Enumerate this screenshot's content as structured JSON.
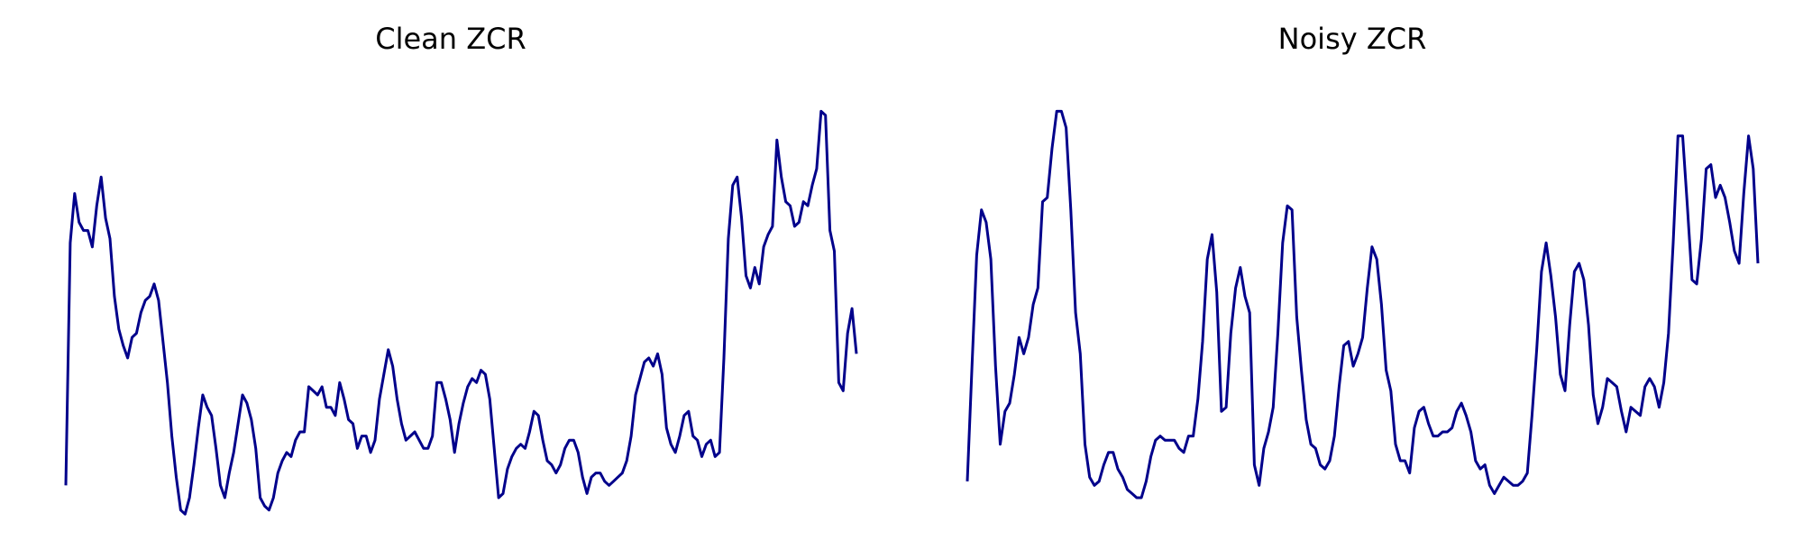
{
  "chart_data": [
    {
      "type": "line",
      "title": "Clean ZCR",
      "xlabel": "",
      "ylabel": "",
      "grid": false,
      "axes_visible": false,
      "color": "#00008b",
      "ylim": [
        0,
        1
      ],
      "series": [
        {
          "values": [
            0.03,
            0.62,
            0.74,
            0.67,
            0.65,
            0.65,
            0.61,
            0.71,
            0.78,
            0.68,
            0.63,
            0.49,
            0.41,
            0.37,
            0.34,
            0.39,
            0.4,
            0.45,
            0.48,
            0.49,
            0.52,
            0.48,
            0.38,
            0.28,
            0.15,
            0.05,
            -0.03,
            -0.04,
            0.0,
            0.08,
            0.17,
            0.25,
            0.22,
            0.2,
            0.12,
            0.03,
            0.0,
            0.06,
            0.11,
            0.18,
            0.25,
            0.23,
            0.19,
            0.12,
            0.0,
            -0.02,
            -0.03,
            0.0,
            0.06,
            0.09,
            0.11,
            0.1,
            0.14,
            0.16,
            0.16,
            0.27,
            0.26,
            0.25,
            0.27,
            0.22,
            0.22,
            0.2,
            0.28,
            0.24,
            0.19,
            0.18,
            0.12,
            0.15,
            0.15,
            0.11,
            0.14,
            0.24,
            0.3,
            0.36,
            0.32,
            0.24,
            0.18,
            0.14,
            0.15,
            0.16,
            0.14,
            0.12,
            0.12,
            0.15,
            0.28,
            0.28,
            0.24,
            0.19,
            0.11,
            0.18,
            0.23,
            0.27,
            0.29,
            0.28,
            0.31,
            0.3,
            0.24,
            0.12,
            0.0,
            0.01,
            0.07,
            0.1,
            0.12,
            0.13,
            0.12,
            0.16,
            0.21,
            0.2,
            0.14,
            0.09,
            0.08,
            0.06,
            0.08,
            0.12,
            0.14,
            0.14,
            0.11,
            0.05,
            0.01,
            0.05,
            0.06,
            0.06,
            0.04,
            0.03,
            0.04,
            0.05,
            0.06,
            0.09,
            0.15,
            0.25,
            0.29,
            0.33,
            0.34,
            0.32,
            0.35,
            0.3,
            0.17,
            0.13,
            0.11,
            0.15,
            0.2,
            0.21,
            0.15,
            0.14,
            0.1,
            0.13,
            0.14,
            0.1,
            0.11,
            0.34,
            0.63,
            0.76,
            0.78,
            0.68,
            0.54,
            0.51,
            0.56,
            0.52,
            0.61,
            0.64,
            0.66,
            0.87,
            0.78,
            0.72,
            0.71,
            0.66,
            0.67,
            0.72,
            0.71,
            0.76,
            0.8,
            0.94,
            0.93,
            0.65,
            0.6,
            0.28,
            0.26,
            0.4,
            0.46,
            0.35
          ]
        }
      ]
    },
    {
      "type": "line",
      "title": "Noisy ZCR",
      "xlabel": "",
      "ylabel": "",
      "grid": false,
      "axes_visible": false,
      "color": "#00008b",
      "ylim": [
        0,
        1
      ],
      "series": [
        {
          "values": [
            0.04,
            0.32,
            0.59,
            0.7,
            0.67,
            0.58,
            0.32,
            0.13,
            0.21,
            0.23,
            0.3,
            0.39,
            0.35,
            0.39,
            0.47,
            0.51,
            0.72,
            0.73,
            0.85,
            0.94,
            0.94,
            0.9,
            0.7,
            0.45,
            0.35,
            0.13,
            0.05,
            0.03,
            0.04,
            0.08,
            0.11,
            0.11,
            0.07,
            0.05,
            0.02,
            0.01,
            0.0,
            0.0,
            0.04,
            0.1,
            0.14,
            0.15,
            0.14,
            0.14,
            0.14,
            0.12,
            0.11,
            0.15,
            0.15,
            0.24,
            0.38,
            0.58,
            0.64,
            0.5,
            0.21,
            0.22,
            0.4,
            0.51,
            0.56,
            0.49,
            0.45,
            0.08,
            0.03,
            0.12,
            0.16,
            0.22,
            0.4,
            0.62,
            0.71,
            0.7,
            0.44,
            0.31,
            0.19,
            0.13,
            0.12,
            0.08,
            0.07,
            0.09,
            0.15,
            0.27,
            0.37,
            0.38,
            0.32,
            0.35,
            0.39,
            0.51,
            0.61,
            0.58,
            0.47,
            0.31,
            0.26,
            0.13,
            0.09,
            0.09,
            0.06,
            0.17,
            0.21,
            0.22,
            0.18,
            0.15,
            0.15,
            0.16,
            0.16,
            0.17,
            0.21,
            0.23,
            0.2,
            0.16,
            0.09,
            0.07,
            0.08,
            0.03,
            0.01,
            0.03,
            0.05,
            0.04,
            0.03,
            0.03,
            0.04,
            0.06,
            0.2,
            0.36,
            0.55,
            0.62,
            0.54,
            0.44,
            0.3,
            0.26,
            0.42,
            0.55,
            0.57,
            0.53,
            0.42,
            0.25,
            0.18,
            0.22,
            0.29,
            0.28,
            0.27,
            0.21,
            0.16,
            0.22,
            0.21,
            0.2,
            0.27,
            0.29,
            0.27,
            0.22,
            0.28,
            0.4,
            0.62,
            0.88,
            0.88,
            0.71,
            0.53,
            0.52,
            0.63,
            0.8,
            0.81,
            0.73,
            0.76,
            0.73,
            0.67,
            0.6,
            0.57,
            0.74,
            0.88,
            0.8,
            0.57
          ]
        }
      ]
    }
  ]
}
